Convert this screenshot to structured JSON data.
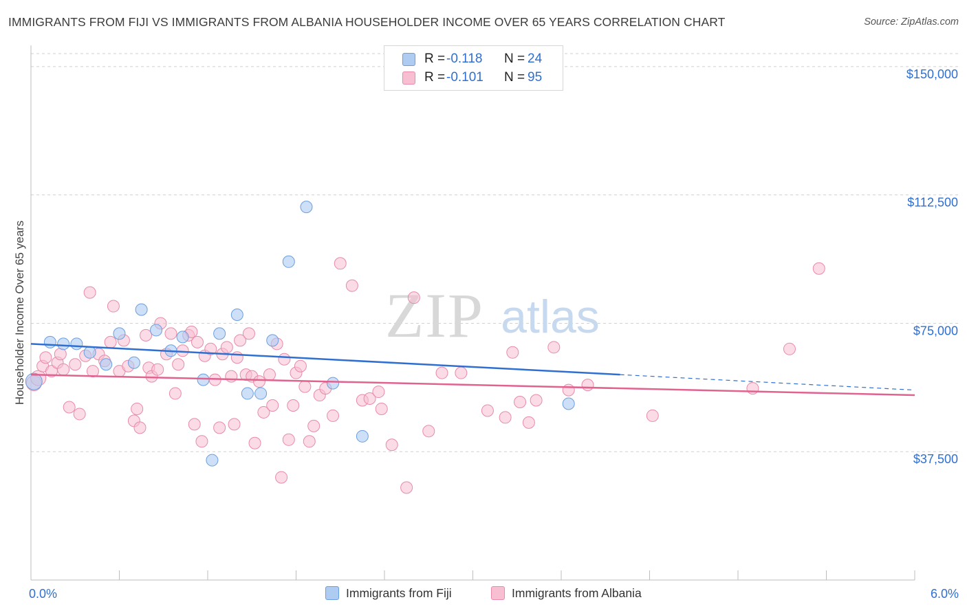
{
  "title": "IMMIGRANTS FROM FIJI VS IMMIGRANTS FROM ALBANIA HOUSEHOLDER INCOME OVER 65 YEARS CORRELATION CHART",
  "source": "Source: ZipAtlas.com",
  "watermark": {
    "zip": "ZIP",
    "atlas": "atlas"
  },
  "colors": {
    "fiji_fill": "#aecbf2",
    "fiji_stroke": "#6a9ee0",
    "fiji_line": "#2f6fd0",
    "albania_fill": "#f7bfd1",
    "albania_stroke": "#e88aa8",
    "albania_line": "#e0628f",
    "axis_label": "#2f6fd0",
    "grid": "#cfcfcf"
  },
  "legend": {
    "fiji": {
      "r_label": "R =",
      "r_value": "-0.118",
      "n_label": "N =",
      "n_value": "24"
    },
    "albania": {
      "r_label": "R =",
      "r_value": "-0.101",
      "n_label": "N =",
      "n_value": "95"
    }
  },
  "bottom_legend": {
    "fiji": "Immigrants from Fiji",
    "albania": "Immigrants from Albania"
  },
  "chart_data": {
    "type": "scatter",
    "xlabel": "",
    "ylabel": "Householder Income Over 65 years",
    "xlim": [
      0,
      6.0
    ],
    "ylim": [
      0,
      155000
    ],
    "x_tick_labels": [
      "0.0%",
      "6.0%"
    ],
    "y_ticks": [
      37500,
      75000,
      112500,
      150000
    ],
    "y_tick_labels": [
      "$37,500",
      "$75,000",
      "$112,500",
      "$150,000"
    ],
    "series": [
      {
        "name": "Immigrants from Fiji",
        "r": -0.118,
        "n": 24,
        "trend": {
          "x0": 0,
          "y0": 69000,
          "x1": 4.0,
          "y1": 60000,
          "dash_to_x": 6.0,
          "dash_to_y": 55500
        },
        "points": [
          [
            0.02,
            58000
          ],
          [
            0.13,
            69500
          ],
          [
            0.22,
            69000
          ],
          [
            0.31,
            69000
          ],
          [
            0.4,
            66500
          ],
          [
            0.51,
            63000
          ],
          [
            0.6,
            72000
          ],
          [
            0.7,
            63500
          ],
          [
            0.75,
            79000
          ],
          [
            0.85,
            73000
          ],
          [
            0.95,
            67000
          ],
          [
            1.03,
            71000
          ],
          [
            1.17,
            58500
          ],
          [
            1.23,
            35000
          ],
          [
            1.28,
            72000
          ],
          [
            1.4,
            77500
          ],
          [
            1.47,
            54500
          ],
          [
            1.56,
            54500
          ],
          [
            1.64,
            70000
          ],
          [
            1.75,
            93000
          ],
          [
            1.87,
            109000
          ],
          [
            2.05,
            57500
          ],
          [
            2.25,
            42000
          ],
          [
            3.65,
            51500
          ]
        ]
      },
      {
        "name": "Immigrants from Albania",
        "r": -0.101,
        "n": 95,
        "trend": {
          "x0": 0,
          "y0": 60000,
          "x1": 6.0,
          "y1": 54000
        },
        "points": [
          [
            0.02,
            57500
          ],
          [
            0.05,
            59000
          ],
          [
            0.08,
            62500
          ],
          [
            0.1,
            65000
          ],
          [
            0.14,
            61000
          ],
          [
            0.18,
            63500
          ],
          [
            0.2,
            66000
          ],
          [
            0.22,
            61500
          ],
          [
            0.26,
            50500
          ],
          [
            0.3,
            63000
          ],
          [
            0.33,
            48500
          ],
          [
            0.37,
            65500
          ],
          [
            0.4,
            84000
          ],
          [
            0.42,
            61000
          ],
          [
            0.46,
            66000
          ],
          [
            0.5,
            64000
          ],
          [
            0.54,
            69500
          ],
          [
            0.56,
            80000
          ],
          [
            0.6,
            61000
          ],
          [
            0.63,
            70000
          ],
          [
            0.66,
            62500
          ],
          [
            0.7,
            46500
          ],
          [
            0.72,
            50000
          ],
          [
            0.74,
            44500
          ],
          [
            0.78,
            71500
          ],
          [
            0.8,
            62000
          ],
          [
            0.82,
            59500
          ],
          [
            0.86,
            61500
          ],
          [
            0.88,
            75000
          ],
          [
            0.92,
            66000
          ],
          [
            0.95,
            72000
          ],
          [
            0.98,
            54500
          ],
          [
            1.0,
            63000
          ],
          [
            1.03,
            67000
          ],
          [
            1.07,
            71500
          ],
          [
            1.09,
            72500
          ],
          [
            1.11,
            45500
          ],
          [
            1.13,
            69500
          ],
          [
            1.16,
            40500
          ],
          [
            1.18,
            65500
          ],
          [
            1.22,
            67500
          ],
          [
            1.25,
            58500
          ],
          [
            1.28,
            44500
          ],
          [
            1.3,
            66000
          ],
          [
            1.33,
            68000
          ],
          [
            1.36,
            59500
          ],
          [
            1.38,
            45500
          ],
          [
            1.4,
            65000
          ],
          [
            1.42,
            70000
          ],
          [
            1.46,
            60000
          ],
          [
            1.48,
            72000
          ],
          [
            1.5,
            59500
          ],
          [
            1.52,
            40000
          ],
          [
            1.55,
            58000
          ],
          [
            1.58,
            49000
          ],
          [
            1.62,
            60000
          ],
          [
            1.64,
            51000
          ],
          [
            1.67,
            69000
          ],
          [
            1.7,
            30000
          ],
          [
            1.72,
            64500
          ],
          [
            1.75,
            41000
          ],
          [
            1.78,
            51000
          ],
          [
            1.8,
            60500
          ],
          [
            1.83,
            62500
          ],
          [
            1.86,
            56500
          ],
          [
            1.89,
            40500
          ],
          [
            1.92,
            45000
          ],
          [
            1.96,
            54000
          ],
          [
            2.0,
            56000
          ],
          [
            2.05,
            48000
          ],
          [
            2.1,
            92500
          ],
          [
            2.18,
            86000
          ],
          [
            2.25,
            52500
          ],
          [
            2.3,
            53000
          ],
          [
            2.36,
            55000
          ],
          [
            2.38,
            50000
          ],
          [
            2.45,
            39500
          ],
          [
            2.55,
            27000
          ],
          [
            2.6,
            82500
          ],
          [
            2.7,
            43500
          ],
          [
            2.79,
            60500
          ],
          [
            2.92,
            60500
          ],
          [
            3.1,
            49500
          ],
          [
            3.22,
            47500
          ],
          [
            3.27,
            66500
          ],
          [
            3.32,
            52000
          ],
          [
            3.38,
            46000
          ],
          [
            3.43,
            52500
          ],
          [
            3.55,
            68000
          ],
          [
            3.65,
            55500
          ],
          [
            3.78,
            57000
          ],
          [
            4.22,
            48000
          ],
          [
            5.15,
            67500
          ],
          [
            5.35,
            91000
          ],
          [
            4.9,
            56000
          ]
        ]
      }
    ]
  }
}
